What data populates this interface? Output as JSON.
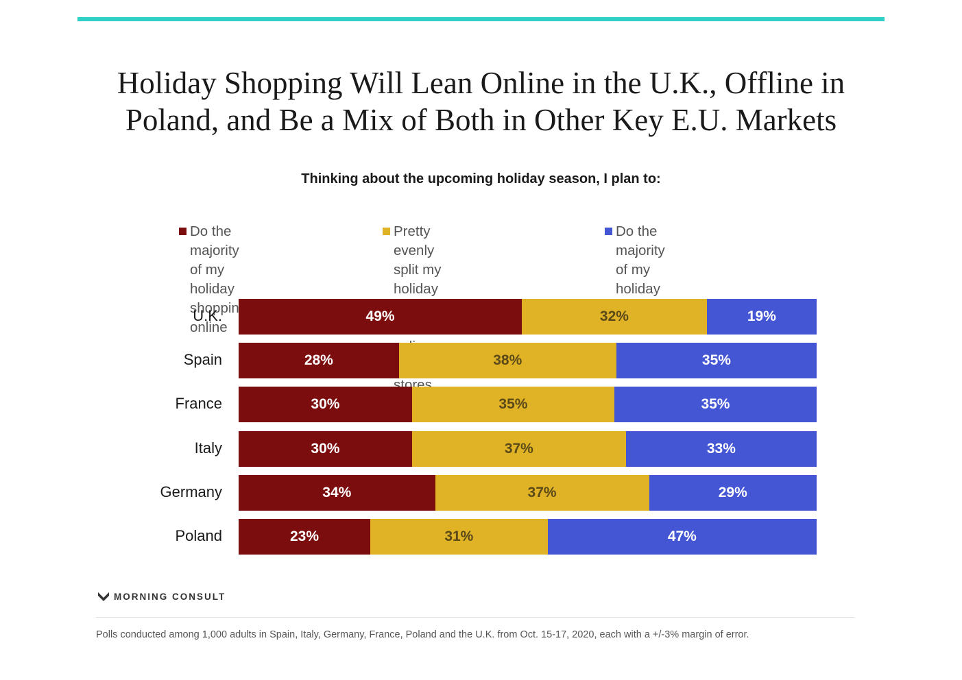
{
  "title_line1": "Holiday Shopping Will Lean Online in the U.K., Offline in",
  "title_line2": "Poland, and Be a Mix of Both in Other Key E.U. Markets",
  "subtitle": "Thinking about the upcoming holiday season, I plan to:",
  "colors": {
    "accent_rule": "#2fd0c8",
    "online": "#7c0d0e",
    "split": "#e0b225",
    "stores": "#4556d4"
  },
  "legend": [
    {
      "label": "Do the majority of my\nholiday shopping online",
      "color": "#7c0d0e"
    },
    {
      "label": "Pretty evenly split my\nholiday shopping between\nonline and in stores",
      "color": "#e0b225"
    },
    {
      "label": "Do the majority of my\nholiday shopping in stores",
      "color": "#4556d4"
    }
  ],
  "chart_data": {
    "type": "bar",
    "orientation": "horizontal",
    "stacked": true,
    "normalized": true,
    "categories": [
      "U.K.",
      "Spain",
      "France",
      "Italy",
      "Germany",
      "Poland"
    ],
    "series": [
      {
        "name": "Do the majority of my holiday shopping online",
        "values": [
          49,
          28,
          30,
          30,
          34,
          23
        ],
        "labels": [
          "49%",
          "28%",
          "30%",
          "30%",
          "34%",
          "23%"
        ]
      },
      {
        "name": "Pretty evenly split my holiday shopping between online and in stores",
        "values": [
          32,
          38,
          35,
          37,
          37,
          31
        ],
        "labels": [
          "32%",
          "38%",
          "35%",
          "37%",
          "37%",
          "31%"
        ]
      },
      {
        "name": "Do the majority of my holiday shopping in stores",
        "values": [
          19,
          35,
          35,
          33,
          29,
          47
        ],
        "labels": [
          "19%",
          "35%",
          "35%",
          "33%",
          "29%",
          "47%"
        ]
      }
    ],
    "legend_position": "top",
    "grid": false
  },
  "brand": "MORNING CONSULT",
  "footnote": "Polls conducted among 1,000 adults in Spain, Italy, Germany, France, Poland and the U.K. from Oct. 15-17, 2020, each with a +/-3% margin of error."
}
